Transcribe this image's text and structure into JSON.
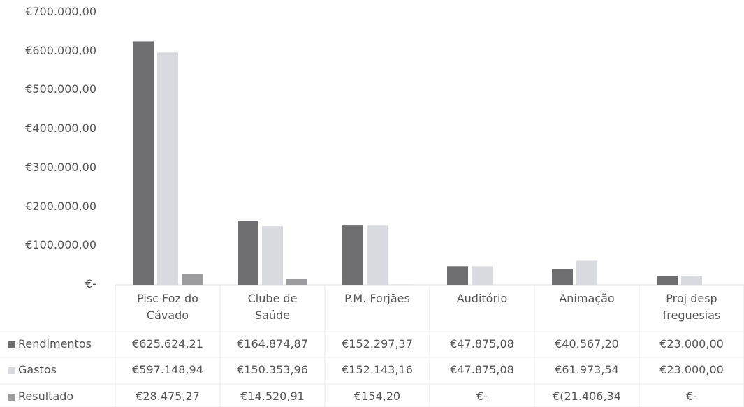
{
  "chart_data": {
    "type": "bar",
    "categories": [
      "Pisc Foz do Cávado",
      "Clube de Saúde",
      "P.M. Forjães",
      "Auditório",
      "Animação",
      "Proj desp freguesias"
    ],
    "series": [
      {
        "name": "Rendimentos",
        "color": "#6e6e70",
        "values": [
          625624.21,
          164874.87,
          152297.37,
          47875.08,
          40567.2,
          23000.0
        ],
        "value_labels": [
          "€625.624,21",
          "€164.874,87",
          "€152.297,37",
          "€47.875,08",
          "€40.567,20",
          "€23.000,00"
        ]
      },
      {
        "name": "Gastos",
        "color": "#d9d9e0",
        "values": [
          597148.94,
          150353.96,
          152143.16,
          47875.08,
          61973.54,
          23000.0
        ],
        "value_labels": [
          "€597.148,94",
          "€150.353,96",
          "€152.143,16",
          "€47.875,08",
          "€61.973,54",
          "€23.000,00"
        ]
      },
      {
        "name": "Resultado",
        "color": "#9c9c9e",
        "values": [
          28475.27,
          14520.91,
          154.2,
          0,
          -21406.34,
          0
        ],
        "value_labels": [
          "€28.475,27",
          "€14.520,91",
          "€154,20",
          "€-",
          "€(21.406,34",
          "€-"
        ]
      }
    ],
    "ylim": [
      0,
      700000
    ],
    "yticks": [
      {
        "value": 0,
        "label": "€-"
      },
      {
        "value": 100000,
        "label": "€100.000,00"
      },
      {
        "value": 200000,
        "label": "€200.000,00"
      },
      {
        "value": 300000,
        "label": "€300.000,00"
      },
      {
        "value": 400000,
        "label": "€400.000,00"
      },
      {
        "value": 500000,
        "label": "€500.000,00"
      },
      {
        "value": 600000,
        "label": "€600.000,00"
      },
      {
        "value": 700000,
        "label": "€700.000,00"
      }
    ],
    "grid": false
  }
}
